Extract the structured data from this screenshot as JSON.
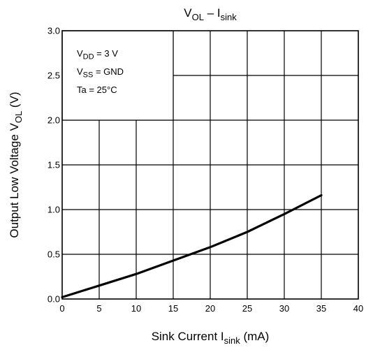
{
  "chart_data": {
    "type": "line",
    "title": {
      "main": "V",
      "main_sub": "OL",
      "sep": " – I",
      "sep_sub": "sink"
    },
    "xlabel": {
      "text": "Sink Current   I",
      "sub": "sink",
      "unit": "   (mA)"
    },
    "ylabel": {
      "text": "Output Low Voltage   V",
      "sub": "OL",
      "unit": "   (V)"
    },
    "xlim": [
      0,
      40
    ],
    "ylim": [
      0,
      3.0
    ],
    "x_ticks": [
      "0",
      "5",
      "10",
      "15",
      "20",
      "25",
      "30",
      "35",
      "40"
    ],
    "y_ticks": [
      "0.0",
      "0.5",
      "1.0",
      "1.5",
      "2.0",
      "2.5",
      "3.0"
    ],
    "grid": true,
    "annotations": [
      {
        "pre": "V",
        "sub": "DD",
        "post": " = 3 V"
      },
      {
        "pre": "V",
        "sub": "SS",
        "post": " = GND"
      },
      {
        "pre": "Ta = 25°C",
        "sub": "",
        "post": ""
      }
    ],
    "series": [
      {
        "x": [
          0,
          5,
          10,
          15,
          20,
          25,
          30,
          35
        ],
        "y": [
          0.02,
          0.15,
          0.28,
          0.43,
          0.58,
          0.75,
          0.95,
          1.16
        ]
      }
    ]
  }
}
